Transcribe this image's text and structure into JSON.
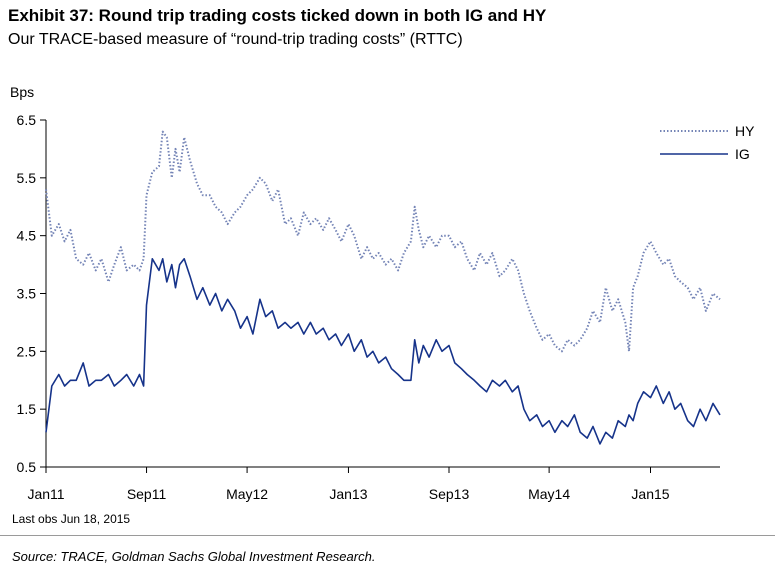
{
  "header": {
    "title": "Exhibit 37: Round trip trading costs ticked down in both IG and HY",
    "subtitle": "Our TRACE-based measure of “round-trip trading costs” (RTTC)"
  },
  "footer": {
    "last_obs": "Last obs Jun 18, 2015",
    "source": "Source: TRACE, Goldman Sachs Global Investment Research."
  },
  "colors": {
    "hy": "#7484b6",
    "ig": "#16338a",
    "axis": "#000000"
  },
  "chart_data": {
    "type": "line",
    "title": "Exhibit 37: Round trip trading costs ticked down in both IG and HY",
    "subtitle": "Our TRACE-based measure of “round-trip trading costs” (RTTC)",
    "ylabel": "Bps",
    "xlabel": "",
    "ylim": [
      0.5,
      6.5
    ],
    "yticks": [
      0.5,
      1.5,
      2.5,
      3.5,
      4.5,
      5.5,
      6.5
    ],
    "ytick_labels": [
      "0.5",
      "1.5",
      "2.5",
      "3.5",
      "4.5",
      "5.5",
      "6.5"
    ],
    "xlim": [
      "2011-01-01",
      "2015-06-18"
    ],
    "xticks": [
      {
        "date": "2011-01-01",
        "label": "Jan11"
      },
      {
        "date": "2011-09-01",
        "label": "Sep11"
      },
      {
        "date": "2012-05-01",
        "label": "May12"
      },
      {
        "date": "2013-01-01",
        "label": "Jan13"
      },
      {
        "date": "2013-09-01",
        "label": "Sep13"
      },
      {
        "date": "2014-05-01",
        "label": "May14"
      },
      {
        "date": "2015-01-01",
        "label": "Jan15"
      }
    ],
    "legend": "top-right",
    "grid": false,
    "series": [
      {
        "name": "HY",
        "style": "dotted",
        "points": [
          [
            "2011-01-01",
            5.3
          ],
          [
            "2011-01-15",
            4.5
          ],
          [
            "2011-02-01",
            4.7
          ],
          [
            "2011-02-15",
            4.4
          ],
          [
            "2011-03-01",
            4.6
          ],
          [
            "2011-03-15",
            4.1
          ],
          [
            "2011-04-01",
            4.0
          ],
          [
            "2011-04-15",
            4.2
          ],
          [
            "2011-05-01",
            3.9
          ],
          [
            "2011-05-15",
            4.1
          ],
          [
            "2011-06-01",
            3.7
          ],
          [
            "2011-06-15",
            4.0
          ],
          [
            "2011-07-01",
            4.3
          ],
          [
            "2011-07-15",
            3.9
          ],
          [
            "2011-08-01",
            4.0
          ],
          [
            "2011-08-15",
            3.9
          ],
          [
            "2011-08-25",
            4.1
          ],
          [
            "2011-09-01",
            5.2
          ],
          [
            "2011-09-15",
            5.6
          ],
          [
            "2011-10-01",
            5.7
          ],
          [
            "2011-10-10",
            6.3
          ],
          [
            "2011-10-20",
            6.2
          ],
          [
            "2011-11-01",
            5.5
          ],
          [
            "2011-11-10",
            6.0
          ],
          [
            "2011-11-20",
            5.6
          ],
          [
            "2011-12-01",
            6.2
          ],
          [
            "2011-12-15",
            5.8
          ],
          [
            "2012-01-01",
            5.4
          ],
          [
            "2012-01-15",
            5.2
          ],
          [
            "2012-02-01",
            5.2
          ],
          [
            "2012-02-15",
            5.0
          ],
          [
            "2012-03-01",
            4.9
          ],
          [
            "2012-03-15",
            4.7
          ],
          [
            "2012-04-01",
            4.9
          ],
          [
            "2012-04-15",
            5.0
          ],
          [
            "2012-05-01",
            5.2
          ],
          [
            "2012-05-15",
            5.3
          ],
          [
            "2012-06-01",
            5.5
          ],
          [
            "2012-06-15",
            5.4
          ],
          [
            "2012-07-01",
            5.1
          ],
          [
            "2012-07-15",
            5.3
          ],
          [
            "2012-08-01",
            4.7
          ],
          [
            "2012-08-15",
            4.8
          ],
          [
            "2012-09-01",
            4.5
          ],
          [
            "2012-09-15",
            4.9
          ],
          [
            "2012-10-01",
            4.7
          ],
          [
            "2012-10-15",
            4.8
          ],
          [
            "2012-11-01",
            4.6
          ],
          [
            "2012-11-15",
            4.8
          ],
          [
            "2012-12-01",
            4.6
          ],
          [
            "2012-12-15",
            4.4
          ],
          [
            "2013-01-01",
            4.7
          ],
          [
            "2013-01-15",
            4.5
          ],
          [
            "2013-02-01",
            4.1
          ],
          [
            "2013-02-15",
            4.3
          ],
          [
            "2013-03-01",
            4.1
          ],
          [
            "2013-03-15",
            4.2
          ],
          [
            "2013-04-01",
            4.0
          ],
          [
            "2013-04-15",
            4.1
          ],
          [
            "2013-05-01",
            3.9
          ],
          [
            "2013-05-15",
            4.2
          ],
          [
            "2013-06-01",
            4.4
          ],
          [
            "2013-06-10",
            5.0
          ],
          [
            "2013-06-20",
            4.6
          ],
          [
            "2013-07-01",
            4.3
          ],
          [
            "2013-07-15",
            4.5
          ],
          [
            "2013-08-01",
            4.3
          ],
          [
            "2013-08-15",
            4.5
          ],
          [
            "2013-09-01",
            4.5
          ],
          [
            "2013-09-15",
            4.3
          ],
          [
            "2013-10-01",
            4.4
          ],
          [
            "2013-10-15",
            4.1
          ],
          [
            "2013-11-01",
            3.9
          ],
          [
            "2013-11-15",
            4.2
          ],
          [
            "2013-12-01",
            4.0
          ],
          [
            "2013-12-15",
            4.2
          ],
          [
            "2014-01-01",
            3.8
          ],
          [
            "2014-01-15",
            3.9
          ],
          [
            "2014-02-01",
            4.1
          ],
          [
            "2014-02-15",
            3.9
          ],
          [
            "2014-03-01",
            3.5
          ],
          [
            "2014-03-15",
            3.2
          ],
          [
            "2014-04-01",
            2.9
          ],
          [
            "2014-04-15",
            2.7
          ],
          [
            "2014-05-01",
            2.8
          ],
          [
            "2014-05-15",
            2.6
          ],
          [
            "2014-06-01",
            2.5
          ],
          [
            "2014-06-15",
            2.7
          ],
          [
            "2014-07-01",
            2.6
          ],
          [
            "2014-07-15",
            2.7
          ],
          [
            "2014-08-01",
            2.9
          ],
          [
            "2014-08-15",
            3.2
          ],
          [
            "2014-09-01",
            3.0
          ],
          [
            "2014-09-15",
            3.6
          ],
          [
            "2014-10-01",
            3.2
          ],
          [
            "2014-10-15",
            3.4
          ],
          [
            "2014-11-01",
            3.0
          ],
          [
            "2014-11-10",
            2.5
          ],
          [
            "2014-11-20",
            3.6
          ],
          [
            "2014-12-01",
            3.8
          ],
          [
            "2014-12-15",
            4.2
          ],
          [
            "2015-01-01",
            4.4
          ],
          [
            "2015-01-15",
            4.2
          ],
          [
            "2015-02-01",
            4.0
          ],
          [
            "2015-02-15",
            4.1
          ],
          [
            "2015-03-01",
            3.8
          ],
          [
            "2015-03-15",
            3.7
          ],
          [
            "2015-04-01",
            3.6
          ],
          [
            "2015-04-15",
            3.4
          ],
          [
            "2015-05-01",
            3.6
          ],
          [
            "2015-05-15",
            3.2
          ],
          [
            "2015-06-01",
            3.5
          ],
          [
            "2015-06-18",
            3.4
          ]
        ]
      },
      {
        "name": "IG",
        "style": "solid",
        "points": [
          [
            "2011-01-01",
            1.1
          ],
          [
            "2011-01-15",
            1.9
          ],
          [
            "2011-02-01",
            2.1
          ],
          [
            "2011-02-15",
            1.9
          ],
          [
            "2011-03-01",
            2.0
          ],
          [
            "2011-03-15",
            2.0
          ],
          [
            "2011-04-01",
            2.3
          ],
          [
            "2011-04-15",
            1.9
          ],
          [
            "2011-05-01",
            2.0
          ],
          [
            "2011-05-15",
            2.0
          ],
          [
            "2011-06-01",
            2.1
          ],
          [
            "2011-06-15",
            1.9
          ],
          [
            "2011-07-01",
            2.0
          ],
          [
            "2011-07-15",
            2.1
          ],
          [
            "2011-08-01",
            1.9
          ],
          [
            "2011-08-15",
            2.1
          ],
          [
            "2011-08-25",
            1.9
          ],
          [
            "2011-09-01",
            3.3
          ],
          [
            "2011-09-15",
            4.1
          ],
          [
            "2011-10-01",
            3.9
          ],
          [
            "2011-10-10",
            4.1
          ],
          [
            "2011-10-20",
            3.7
          ],
          [
            "2011-11-01",
            4.0
          ],
          [
            "2011-11-10",
            3.6
          ],
          [
            "2011-11-20",
            4.0
          ],
          [
            "2011-12-01",
            4.1
          ],
          [
            "2011-12-15",
            3.8
          ],
          [
            "2012-01-01",
            3.4
          ],
          [
            "2012-01-15",
            3.6
          ],
          [
            "2012-02-01",
            3.3
          ],
          [
            "2012-02-15",
            3.5
          ],
          [
            "2012-03-01",
            3.2
          ],
          [
            "2012-03-15",
            3.4
          ],
          [
            "2012-04-01",
            3.2
          ],
          [
            "2012-04-15",
            2.9
          ],
          [
            "2012-05-01",
            3.1
          ],
          [
            "2012-05-15",
            2.8
          ],
          [
            "2012-06-01",
            3.4
          ],
          [
            "2012-06-15",
            3.1
          ],
          [
            "2012-07-01",
            3.2
          ],
          [
            "2012-07-15",
            2.9
          ],
          [
            "2012-08-01",
            3.0
          ],
          [
            "2012-08-15",
            2.9
          ],
          [
            "2012-09-01",
            3.0
          ],
          [
            "2012-09-15",
            2.8
          ],
          [
            "2012-10-01",
            3.0
          ],
          [
            "2012-10-15",
            2.8
          ],
          [
            "2012-11-01",
            2.9
          ],
          [
            "2012-11-15",
            2.7
          ],
          [
            "2012-12-01",
            2.8
          ],
          [
            "2012-12-15",
            2.6
          ],
          [
            "2013-01-01",
            2.8
          ],
          [
            "2013-01-15",
            2.5
          ],
          [
            "2013-02-01",
            2.7
          ],
          [
            "2013-02-15",
            2.4
          ],
          [
            "2013-03-01",
            2.5
          ],
          [
            "2013-03-15",
            2.3
          ],
          [
            "2013-04-01",
            2.4
          ],
          [
            "2013-04-15",
            2.2
          ],
          [
            "2013-05-01",
            2.1
          ],
          [
            "2013-05-15",
            2.0
          ],
          [
            "2013-06-01",
            2.0
          ],
          [
            "2013-06-10",
            2.7
          ],
          [
            "2013-06-20",
            2.3
          ],
          [
            "2013-07-01",
            2.6
          ],
          [
            "2013-07-15",
            2.4
          ],
          [
            "2013-08-01",
            2.7
          ],
          [
            "2013-08-15",
            2.5
          ],
          [
            "2013-09-01",
            2.6
          ],
          [
            "2013-09-15",
            2.3
          ],
          [
            "2013-10-01",
            2.2
          ],
          [
            "2013-10-15",
            2.1
          ],
          [
            "2013-11-01",
            2.0
          ],
          [
            "2013-11-15",
            1.9
          ],
          [
            "2013-12-01",
            1.8
          ],
          [
            "2013-12-15",
            2.0
          ],
          [
            "2014-01-01",
            1.9
          ],
          [
            "2014-01-15",
            2.0
          ],
          [
            "2014-02-01",
            1.8
          ],
          [
            "2014-02-15",
            1.9
          ],
          [
            "2014-03-01",
            1.5
          ],
          [
            "2014-03-15",
            1.3
          ],
          [
            "2014-04-01",
            1.4
          ],
          [
            "2014-04-15",
            1.2
          ],
          [
            "2014-05-01",
            1.3
          ],
          [
            "2014-05-15",
            1.1
          ],
          [
            "2014-06-01",
            1.3
          ],
          [
            "2014-06-15",
            1.2
          ],
          [
            "2014-07-01",
            1.4
          ],
          [
            "2014-07-15",
            1.1
          ],
          [
            "2014-08-01",
            1.0
          ],
          [
            "2014-08-15",
            1.2
          ],
          [
            "2014-09-01",
            0.9
          ],
          [
            "2014-09-15",
            1.1
          ],
          [
            "2014-10-01",
            1.0
          ],
          [
            "2014-10-15",
            1.3
          ],
          [
            "2014-11-01",
            1.2
          ],
          [
            "2014-11-10",
            1.4
          ],
          [
            "2014-11-20",
            1.3
          ],
          [
            "2014-12-01",
            1.6
          ],
          [
            "2014-12-15",
            1.8
          ],
          [
            "2015-01-01",
            1.7
          ],
          [
            "2015-01-15",
            1.9
          ],
          [
            "2015-02-01",
            1.6
          ],
          [
            "2015-02-15",
            1.8
          ],
          [
            "2015-03-01",
            1.5
          ],
          [
            "2015-03-15",
            1.6
          ],
          [
            "2015-04-01",
            1.3
          ],
          [
            "2015-04-15",
            1.2
          ],
          [
            "2015-05-01",
            1.5
          ],
          [
            "2015-05-15",
            1.3
          ],
          [
            "2015-06-01",
            1.6
          ],
          [
            "2015-06-18",
            1.4
          ]
        ]
      }
    ]
  }
}
